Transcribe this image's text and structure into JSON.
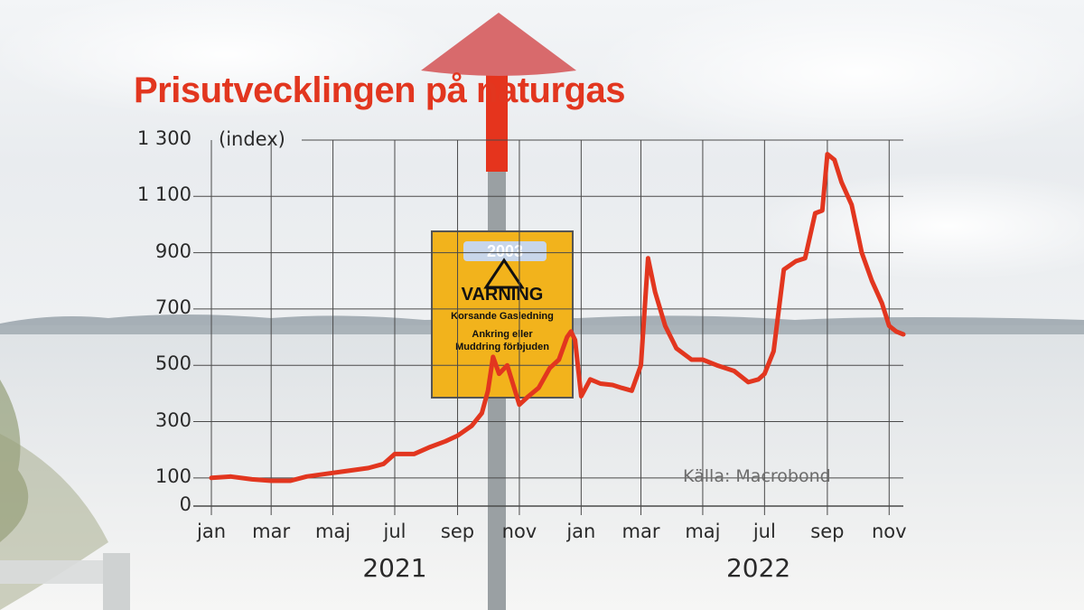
{
  "header": {
    "title": "Prisutvecklingen på naturgas",
    "unit_label": "(index)",
    "source": "Källa: Macrobond"
  },
  "background": {
    "sign_badge": "2003",
    "sign_title": "VARNING",
    "sign_line1": "Korsande Gasledning",
    "sign_line2a": "Ankring eller",
    "sign_line2b": "Muddring förbjuden"
  },
  "colors": {
    "line": "#e2361f",
    "grid": "#4a4a4a",
    "title": "#e2361f"
  },
  "chart_data": {
    "type": "line",
    "title": "Prisutvecklingen på naturgas",
    "ylabel": "(index)",
    "xlabel": "",
    "ylim": [
      0,
      1300
    ],
    "xlim": [
      "2021-01-01",
      "2022-11-15"
    ],
    "yticks": [
      "1 300",
      "1 100",
      "900",
      "700",
      "500",
      "300",
      "100",
      "0"
    ],
    "ytick_values": [
      1300,
      1100,
      900,
      700,
      500,
      300,
      100,
      0
    ],
    "xtick_labels": [
      "jan",
      "mar",
      "maj",
      "jul",
      "sep",
      "nov",
      "jan",
      "mar",
      "maj",
      "jul",
      "sep",
      "nov"
    ],
    "xtick_dates": [
      "2021-01-01",
      "2021-03-01",
      "2021-05-01",
      "2021-07-01",
      "2021-09-01",
      "2021-11-01",
      "2022-01-01",
      "2022-03-01",
      "2022-05-01",
      "2022-07-01",
      "2022-09-01",
      "2022-11-01"
    ],
    "year_labels": [
      "2021",
      "2022"
    ],
    "grid": true,
    "series": [
      {
        "name": "",
        "x": [
          "2021-01-01",
          "2021-01-20",
          "2021-02-10",
          "2021-03-01",
          "2021-03-20",
          "2021-04-05",
          "2021-04-25",
          "2021-05-15",
          "2021-06-05",
          "2021-06-20",
          "2021-07-01",
          "2021-07-20",
          "2021-08-05",
          "2021-08-20",
          "2021-09-01",
          "2021-09-15",
          "2021-09-25",
          "2021-10-01",
          "2021-10-06",
          "2021-10-12",
          "2021-10-20",
          "2021-11-01",
          "2021-11-10",
          "2021-11-20",
          "2021-12-01",
          "2021-12-10",
          "2021-12-18",
          "2021-12-22",
          "2021-12-26",
          "2022-01-01",
          "2022-01-10",
          "2022-01-20",
          "2022-02-01",
          "2022-02-10",
          "2022-02-20",
          "2022-03-01",
          "2022-03-08",
          "2022-03-15",
          "2022-03-25",
          "2022-04-05",
          "2022-04-20",
          "2022-05-01",
          "2022-05-15",
          "2022-06-01",
          "2022-06-15",
          "2022-06-25",
          "2022-07-01",
          "2022-07-10",
          "2022-07-20",
          "2022-08-01",
          "2022-08-10",
          "2022-08-20",
          "2022-08-27",
          "2022-09-01",
          "2022-09-08",
          "2022-09-15",
          "2022-09-25",
          "2022-10-05",
          "2022-10-15",
          "2022-10-25",
          "2022-11-01",
          "2022-11-08",
          "2022-11-15"
        ],
        "y": [
          100,
          105,
          95,
          90,
          90,
          105,
          115,
          125,
          135,
          150,
          185,
          185,
          210,
          230,
          250,
          285,
          330,
          410,
          530,
          470,
          500,
          360,
          390,
          420,
          490,
          520,
          600,
          620,
          590,
          390,
          450,
          435,
          430,
          420,
          410,
          500,
          880,
          760,
          640,
          560,
          520,
          520,
          500,
          480,
          440,
          450,
          470,
          550,
          840,
          870,
          880,
          1040,
          1050,
          1250,
          1230,
          1150,
          1070,
          900,
          800,
          720,
          640,
          620,
          610
        ]
      }
    ]
  }
}
